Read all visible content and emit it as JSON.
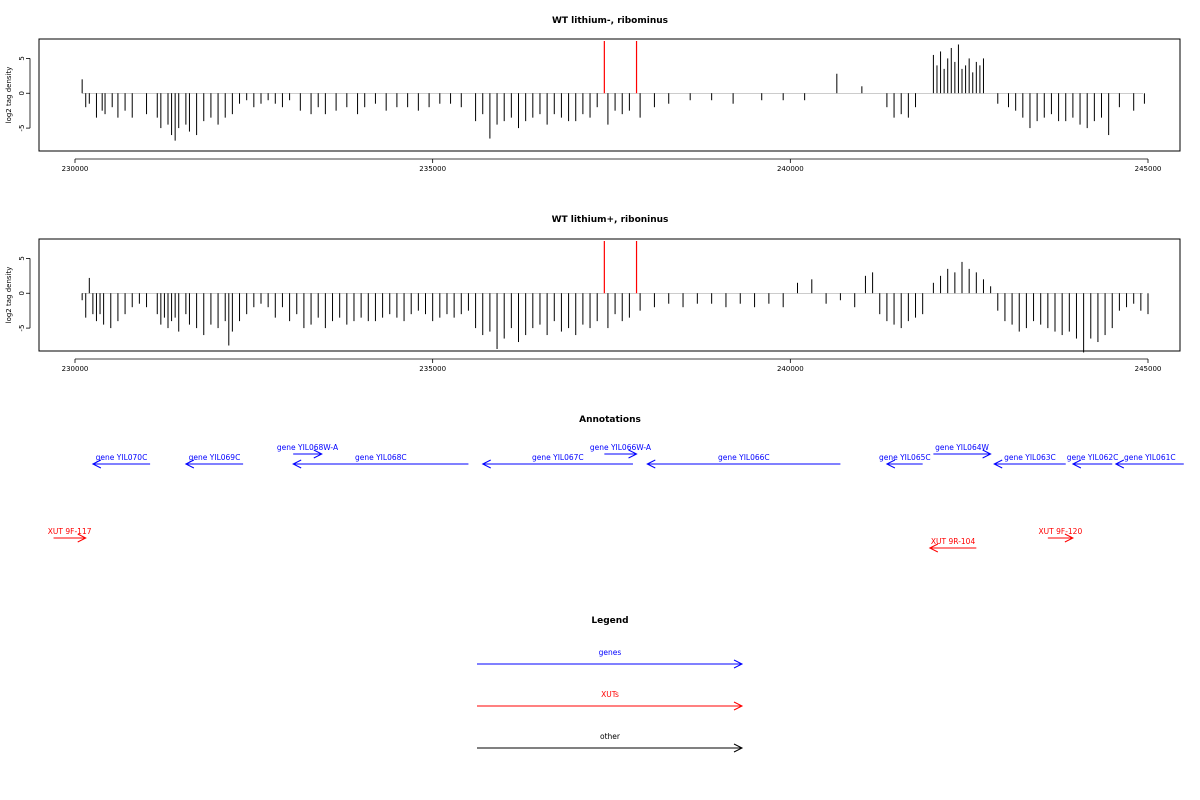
{
  "chart_data": [
    {
      "type": "bar",
      "title": "WT lithium-, ribominus",
      "ylabel": "log2 tag density",
      "xlabel": "",
      "xlim": [
        230000,
        245000
      ],
      "ylim": [
        -8,
        7.5
      ],
      "x_ticks": [
        "230000",
        "235000",
        "240000",
        "245000"
      ],
      "y_ticks": [
        "5",
        "0",
        "-5"
      ],
      "grid": false,
      "series": [
        {
          "color": "#000000",
          "x": [
            230100,
            230150,
            230200,
            230300,
            230380,
            230420,
            230520,
            230600,
            230700,
            230800,
            231000,
            231150,
            231200,
            231300,
            231350,
            231400,
            231450,
            231550,
            231600,
            231700,
            231800,
            231900,
            232000,
            232100,
            232200,
            232300,
            232400,
            232500,
            232600,
            232700,
            232800,
            232900,
            233000,
            233150,
            233300,
            233400,
            233500,
            233650,
            233800,
            233950,
            234050,
            234200,
            234350,
            234500,
            234650,
            234800,
            234950,
            235100,
            235250,
            235400,
            235600,
            235700,
            235800,
            235900,
            236000,
            236100,
            236200,
            236300,
            236400,
            236500,
            236600,
            236700,
            236800,
            236900,
            237000,
            237100,
            237200,
            237300,
            237450,
            237550,
            237650,
            237750,
            237900,
            238100,
            238300,
            238600,
            238900,
            239200,
            239600,
            239900,
            240200,
            240650,
            241000,
            241350,
            241450,
            241550,
            241650,
            241750,
            242000,
            242050,
            242100,
            242150,
            242200,
            242250,
            242300,
            242350,
            242400,
            242450,
            242500,
            242550,
            242600,
            242650,
            242700,
            242900,
            243050,
            243150,
            243250,
            243350,
            243450,
            243550,
            243650,
            243750,
            243850,
            243950,
            244050,
            244150,
            244250,
            244350,
            244450,
            244600,
            244800,
            244950
          ],
          "values": [
            2.0,
            -2.0,
            -1.5,
            -3.5,
            -2.5,
            -3.0,
            -2.0,
            -3.5,
            -2.5,
            -3.5,
            -3.0,
            -3.5,
            -5.0,
            -4.5,
            -6.0,
            -6.8,
            -5.0,
            -4.5,
            -5.5,
            -6.0,
            -4.0,
            -3.5,
            -4.5,
            -3.5,
            -3.0,
            -1.5,
            -1.0,
            -2.0,
            -1.5,
            -1.0,
            -1.5,
            -2.0,
            -1.0,
            -2.5,
            -3.0,
            -2.0,
            -3.0,
            -2.5,
            -2.0,
            -3.0,
            -2.0,
            -1.5,
            -2.5,
            -2.0,
            -2.0,
            -2.5,
            -2.0,
            -1.5,
            -1.5,
            -2.0,
            -4.0,
            -3.0,
            -6.5,
            -4.5,
            -4.0,
            -3.5,
            -5.0,
            -4.0,
            -3.5,
            -3.0,
            -4.5,
            -3.0,
            -3.5,
            -4.0,
            -4.0,
            -3.0,
            -3.5,
            -2.0,
            -4.5,
            -2.5,
            -3.0,
            -2.5,
            -3.5,
            -2.0,
            -1.5,
            -1.0,
            -1.0,
            -1.5,
            -1.0,
            -1.0,
            -1.0,
            2.8,
            1.0,
            -2.0,
            -3.5,
            -3.0,
            -3.5,
            -2.0,
            5.5,
            4.0,
            6.0,
            3.5,
            5.0,
            6.5,
            4.5,
            7.0,
            3.5,
            4.0,
            5.0,
            3.0,
            4.5,
            4.0,
            5.0,
            -1.5,
            -2.0,
            -2.5,
            -3.5,
            -5.0,
            -4.0,
            -3.5,
            -3.0,
            -4.0,
            -4.0,
            -3.5,
            -4.5,
            -5.0,
            -4.0,
            -3.5,
            -6.0,
            -2.0,
            -2.5,
            -1.5
          ]
        },
        {
          "color": "#ff0000",
          "x": [
            237400,
            237850
          ],
          "values": [
            7.5,
            7.5
          ]
        }
      ]
    },
    {
      "type": "bar",
      "title": "WT lithium+, riboninus",
      "ylabel": "log2 tag density",
      "xlabel": "",
      "xlim": [
        230000,
        245000
      ],
      "ylim": [
        -8,
        7.5
      ],
      "x_ticks": [
        "230000",
        "235000",
        "240000",
        "245000"
      ],
      "y_ticks": [
        "5",
        "0",
        "-5"
      ],
      "grid": false,
      "series": [
        {
          "color": "#000000",
          "x": [
            230100,
            230150,
            230200,
            230250,
            230300,
            230350,
            230400,
            230500,
            230600,
            230700,
            230800,
            230900,
            231000,
            231150,
            231200,
            231250,
            231300,
            231350,
            231400,
            231450,
            231550,
            231600,
            231700,
            231800,
            231900,
            232000,
            232100,
            232150,
            232200,
            232300,
            232400,
            232500,
            232600,
            232700,
            232800,
            232900,
            233000,
            233100,
            233200,
            233300,
            233400,
            233500,
            233600,
            233700,
            233800,
            233900,
            234000,
            234100,
            234200,
            234300,
            234400,
            234500,
            234600,
            234700,
            234800,
            234900,
            235000,
            235100,
            235200,
            235300,
            235400,
            235500,
            235600,
            235700,
            235800,
            235900,
            236000,
            236100,
            236200,
            236300,
            236400,
            236500,
            236600,
            236700,
            236800,
            236900,
            237000,
            237100,
            237200,
            237300,
            237450,
            237550,
            237650,
            237750,
            237900,
            238100,
            238300,
            238500,
            238700,
            238900,
            239100,
            239300,
            239500,
            239700,
            239900,
            240100,
            240300,
            240500,
            240700,
            240900,
            241050,
            241150,
            241250,
            241350,
            241450,
            241550,
            241650,
            241750,
            241850,
            242000,
            242100,
            242200,
            242300,
            242400,
            242500,
            242600,
            242700,
            242800,
            242900,
            243000,
            243100,
            243200,
            243300,
            243400,
            243500,
            243600,
            243700,
            243800,
            243900,
            244000,
            244100,
            244200,
            244300,
            244400,
            244500,
            244600,
            244700,
            244800,
            244900,
            245000
          ],
          "values": [
            -1.0,
            -3.5,
            2.2,
            -3.0,
            -4.0,
            -3.0,
            -4.5,
            -5.0,
            -4.0,
            -3.0,
            -2.0,
            -1.5,
            -2.0,
            -3.0,
            -4.5,
            -3.5,
            -5.0,
            -4.0,
            -3.5,
            -5.5,
            -3.0,
            -4.5,
            -5.0,
            -6.0,
            -4.5,
            -5.0,
            -4.0,
            -7.5,
            -5.5,
            -4.0,
            -3.0,
            -2.0,
            -1.5,
            -2.0,
            -3.5,
            -2.0,
            -4.0,
            -3.0,
            -5.0,
            -4.5,
            -3.5,
            -5.0,
            -4.0,
            -3.5,
            -4.5,
            -4.0,
            -3.5,
            -4.0,
            -4.0,
            -3.5,
            -3.0,
            -3.5,
            -4.0,
            -3.0,
            -2.5,
            -3.0,
            -4.0,
            -3.5,
            -3.0,
            -3.5,
            -3.0,
            -2.5,
            -5.0,
            -6.0,
            -5.5,
            -8.0,
            -6.5,
            -5.0,
            -7.0,
            -6.0,
            -5.0,
            -4.5,
            -6.0,
            -4.0,
            -5.5,
            -5.0,
            -6.0,
            -4.5,
            -5.0,
            -4.0,
            -5.0,
            -3.0,
            -4.0,
            -3.5,
            -2.5,
            -2.0,
            -1.5,
            -2.0,
            -1.5,
            -1.5,
            -2.0,
            -1.5,
            -2.0,
            -1.5,
            -2.0,
            1.5,
            2.0,
            -1.5,
            -1.0,
            -2.0,
            2.5,
            3.0,
            -3.0,
            -4.0,
            -4.5,
            -5.0,
            -4.0,
            -3.5,
            -3.0,
            1.5,
            2.5,
            3.5,
            3.0,
            4.5,
            3.5,
            3.0,
            2.0,
            1.0,
            -2.5,
            -4.0,
            -4.5,
            -5.5,
            -5.0,
            -4.0,
            -4.5,
            -5.0,
            -5.5,
            -6.0,
            -5.5,
            -6.5,
            -8.5,
            -6.5,
            -7.0,
            -6.0,
            -5.0,
            -2.5,
            -2.0,
            -1.5,
            -2.5,
            -3.0
          ]
        },
        {
          "color": "#ff0000",
          "x": [
            237400,
            237850
          ],
          "values": [
            7.5,
            7.5
          ]
        }
      ]
    }
  ],
  "annotations": {
    "title": "Annotations",
    "genes": [
      {
        "label": "gene YIL070C",
        "start": 230250,
        "end": 231050,
        "direction": "left",
        "row": 0
      },
      {
        "label": "gene YIL069C",
        "start": 231550,
        "end": 232350,
        "direction": "left",
        "row": 0
      },
      {
        "label": "gene YIL068W-A",
        "start": 233050,
        "end": 233450,
        "direction": "right",
        "row": 1
      },
      {
        "label": "gene YIL068C",
        "start": 233050,
        "end": 235500,
        "direction": "left",
        "row": 0
      },
      {
        "label": "gene YIL067C",
        "start": 235700,
        "end": 237800,
        "direction": "left",
        "row": 0
      },
      {
        "label": "gene YIL066W-A",
        "start": 237400,
        "end": 237850,
        "direction": "right",
        "row": 1
      },
      {
        "label": "gene YIL066C",
        "start": 238000,
        "end": 240700,
        "direction": "left",
        "row": 0
      },
      {
        "label": "gene YIL065C",
        "start": 241350,
        "end": 241850,
        "direction": "left",
        "row": 0
      },
      {
        "label": "gene YIL064W",
        "start": 242000,
        "end": 242800,
        "direction": "right",
        "row": 1
      },
      {
        "label": "gene YIL063C",
        "start": 242850,
        "end": 243850,
        "direction": "left",
        "row": 0
      },
      {
        "label": "gene YIL062C",
        "start": 243950,
        "end": 244500,
        "direction": "left",
        "row": 0
      },
      {
        "label": "gene YIL061C",
        "start": 244550,
        "end": 245500,
        "direction": "left",
        "row": 0
      }
    ],
    "xuts": [
      {
        "label": "XUT 9F-117",
        "start": 229700,
        "end": 230150,
        "direction": "right",
        "row": 0
      },
      {
        "label": "XUT 9R-104",
        "start": 241950,
        "end": 242600,
        "direction": "left",
        "row": 1
      },
      {
        "label": "XUT 9F-120",
        "start": 243600,
        "end": 243950,
        "direction": "right",
        "row": 0
      }
    ]
  },
  "legend": {
    "title": "Legend",
    "items": [
      {
        "label": "genes",
        "color": "#0000ff"
      },
      {
        "label": "XUTs",
        "color": "#ff0000"
      },
      {
        "label": "other",
        "color": "#000000"
      }
    ]
  },
  "colors": {
    "gene": "#0000ff",
    "xut": "#ff0000",
    "other": "#000000",
    "signal": "#000000",
    "marker": "#ff0000"
  }
}
